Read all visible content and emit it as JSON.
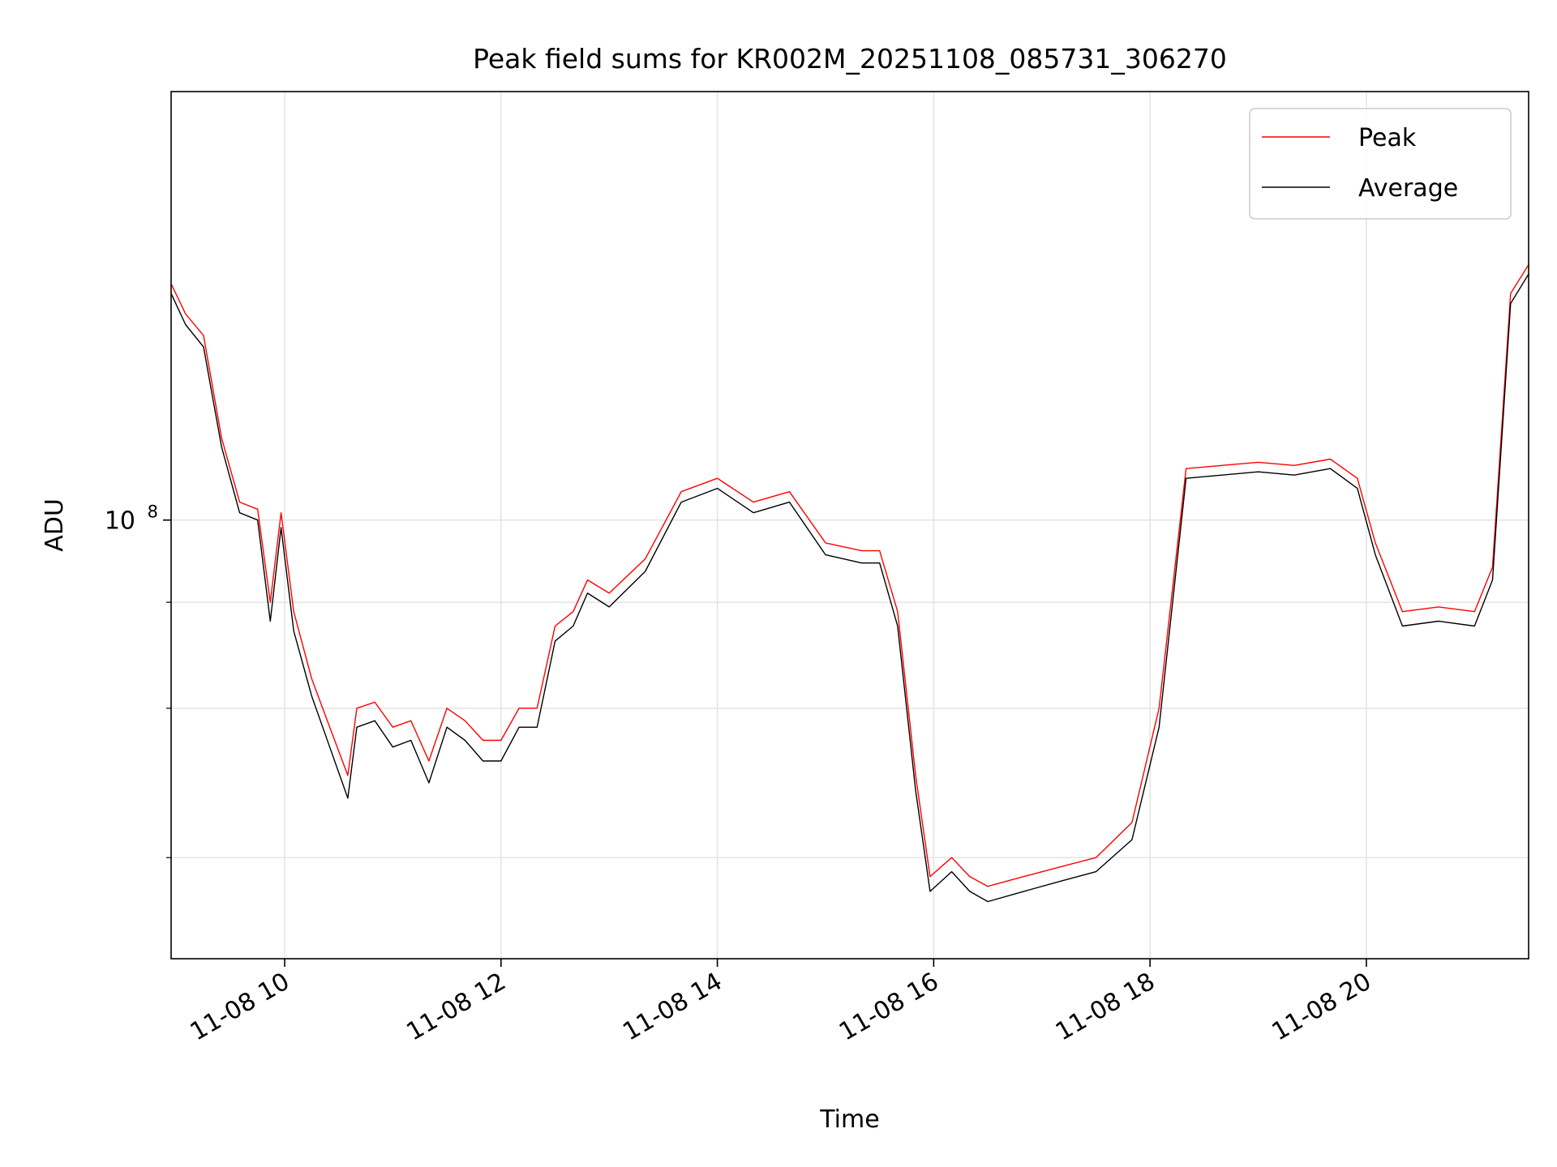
{
  "chart_data": {
    "type": "line",
    "title": "Peak field sums for KR002M_20251108_085731_306270",
    "xlabel": "Time",
    "ylabel": "ADU",
    "y_scale": "log",
    "grid": true,
    "legend_placement": "top-right",
    "xlim": [
      "2025-11-08 08:57",
      "2025-11-08 21:30"
    ],
    "ylim": [
      30400000,
      320000000
    ],
    "x_ticks": [
      {
        "value": "2025-11-08 10:00",
        "label": "11-08 10"
      },
      {
        "value": "2025-11-08 12:00",
        "label": "11-08 12"
      },
      {
        "value": "2025-11-08 14:00",
        "label": "11-08 14"
      },
      {
        "value": "2025-11-08 16:00",
        "label": "11-08 16"
      },
      {
        "value": "2025-11-08 18:00",
        "label": "11-08 18"
      },
      {
        "value": "2025-11-08 20:00",
        "label": "11-08 20"
      }
    ],
    "y_major_ticks": [
      {
        "value": 100000000,
        "base": "10",
        "exp": "8"
      }
    ],
    "y_minor_ticks": [
      40000000,
      60000000,
      80000000
    ],
    "series": [
      {
        "name": "Peak",
        "color": "#ff0000",
        "x": [
          "08:57",
          "09:05",
          "09:15",
          "09:25",
          "09:35",
          "09:45",
          "09:52",
          "09:58",
          "10:05",
          "10:15",
          "10:25",
          "10:35",
          "10:40",
          "10:50",
          "11:00",
          "11:10",
          "11:20",
          "11:30",
          "11:40",
          "11:50",
          "12:00",
          "12:10",
          "12:20",
          "12:30",
          "12:40",
          "12:48",
          "13:00",
          "13:20",
          "13:40",
          "14:00",
          "14:20",
          "14:40",
          "15:00",
          "15:20",
          "15:30",
          "15:40",
          "15:50",
          "15:58",
          "16:10",
          "16:20",
          "16:30",
          "16:50",
          "17:10",
          "17:30",
          "17:50",
          "18:05",
          "18:20",
          "18:40",
          "19:00",
          "19:20",
          "19:40",
          "19:55",
          "20:05",
          "20:20",
          "20:40",
          "21:00",
          "21:10",
          "21:20",
          "21:30"
        ],
        "y": [
          190000000,
          175000000,
          165000000,
          125000000,
          105000000,
          103000000,
          80000000,
          102000000,
          78000000,
          65000000,
          57000000,
          50000000,
          60000000,
          61000000,
          57000000,
          58000000,
          52000000,
          60000000,
          58000000,
          55000000,
          55000000,
          60000000,
          60000000,
          75000000,
          78000000,
          85000000,
          82000000,
          90000000,
          108000000,
          112000000,
          105000000,
          108000000,
          94000000,
          92000000,
          92000000,
          78000000,
          50000000,
          38000000,
          40000000,
          38000000,
          37000000,
          38000000,
          39000000,
          40000000,
          44000000,
          60000000,
          115000000,
          116000000,
          117000000,
          116000000,
          118000000,
          112000000,
          94000000,
          78000000,
          79000000,
          78000000,
          88000000,
          185000000,
          200000000
        ]
      },
      {
        "name": "Average",
        "color": "#000000",
        "x": [
          "08:57",
          "09:05",
          "09:15",
          "09:25",
          "09:35",
          "09:45",
          "09:52",
          "09:58",
          "10:05",
          "10:15",
          "10:25",
          "10:35",
          "10:40",
          "10:50",
          "11:00",
          "11:10",
          "11:20",
          "11:30",
          "11:40",
          "11:50",
          "12:00",
          "12:10",
          "12:20",
          "12:30",
          "12:40",
          "12:48",
          "13:00",
          "13:20",
          "13:40",
          "14:00",
          "14:20",
          "14:40",
          "15:00",
          "15:20",
          "15:30",
          "15:40",
          "15:50",
          "15:58",
          "16:10",
          "16:20",
          "16:30",
          "16:50",
          "17:10",
          "17:30",
          "17:50",
          "18:05",
          "18:20",
          "18:40",
          "19:00",
          "19:20",
          "19:40",
          "19:55",
          "20:05",
          "20:20",
          "20:40",
          "21:00",
          "21:10",
          "21:20",
          "21:30"
        ],
        "y": [
          185000000,
          170000000,
          160000000,
          122000000,
          102000000,
          100000000,
          76000000,
          98000000,
          74000000,
          62000000,
          54000000,
          47000000,
          57000000,
          58000000,
          54000000,
          55000000,
          49000000,
          57000000,
          55000000,
          52000000,
          52000000,
          57000000,
          57000000,
          72000000,
          75000000,
          82000000,
          79000000,
          87000000,
          105000000,
          109000000,
          102000000,
          105000000,
          91000000,
          89000000,
          89000000,
          75000000,
          48000000,
          36500000,
          38500000,
          36500000,
          35500000,
          36500000,
          37500000,
          38500000,
          42000000,
          57000000,
          112000000,
          113000000,
          114000000,
          113000000,
          115000000,
          109000000,
          91000000,
          75000000,
          76000000,
          75000000,
          85000000,
          180000000,
          195000000
        ]
      }
    ]
  }
}
